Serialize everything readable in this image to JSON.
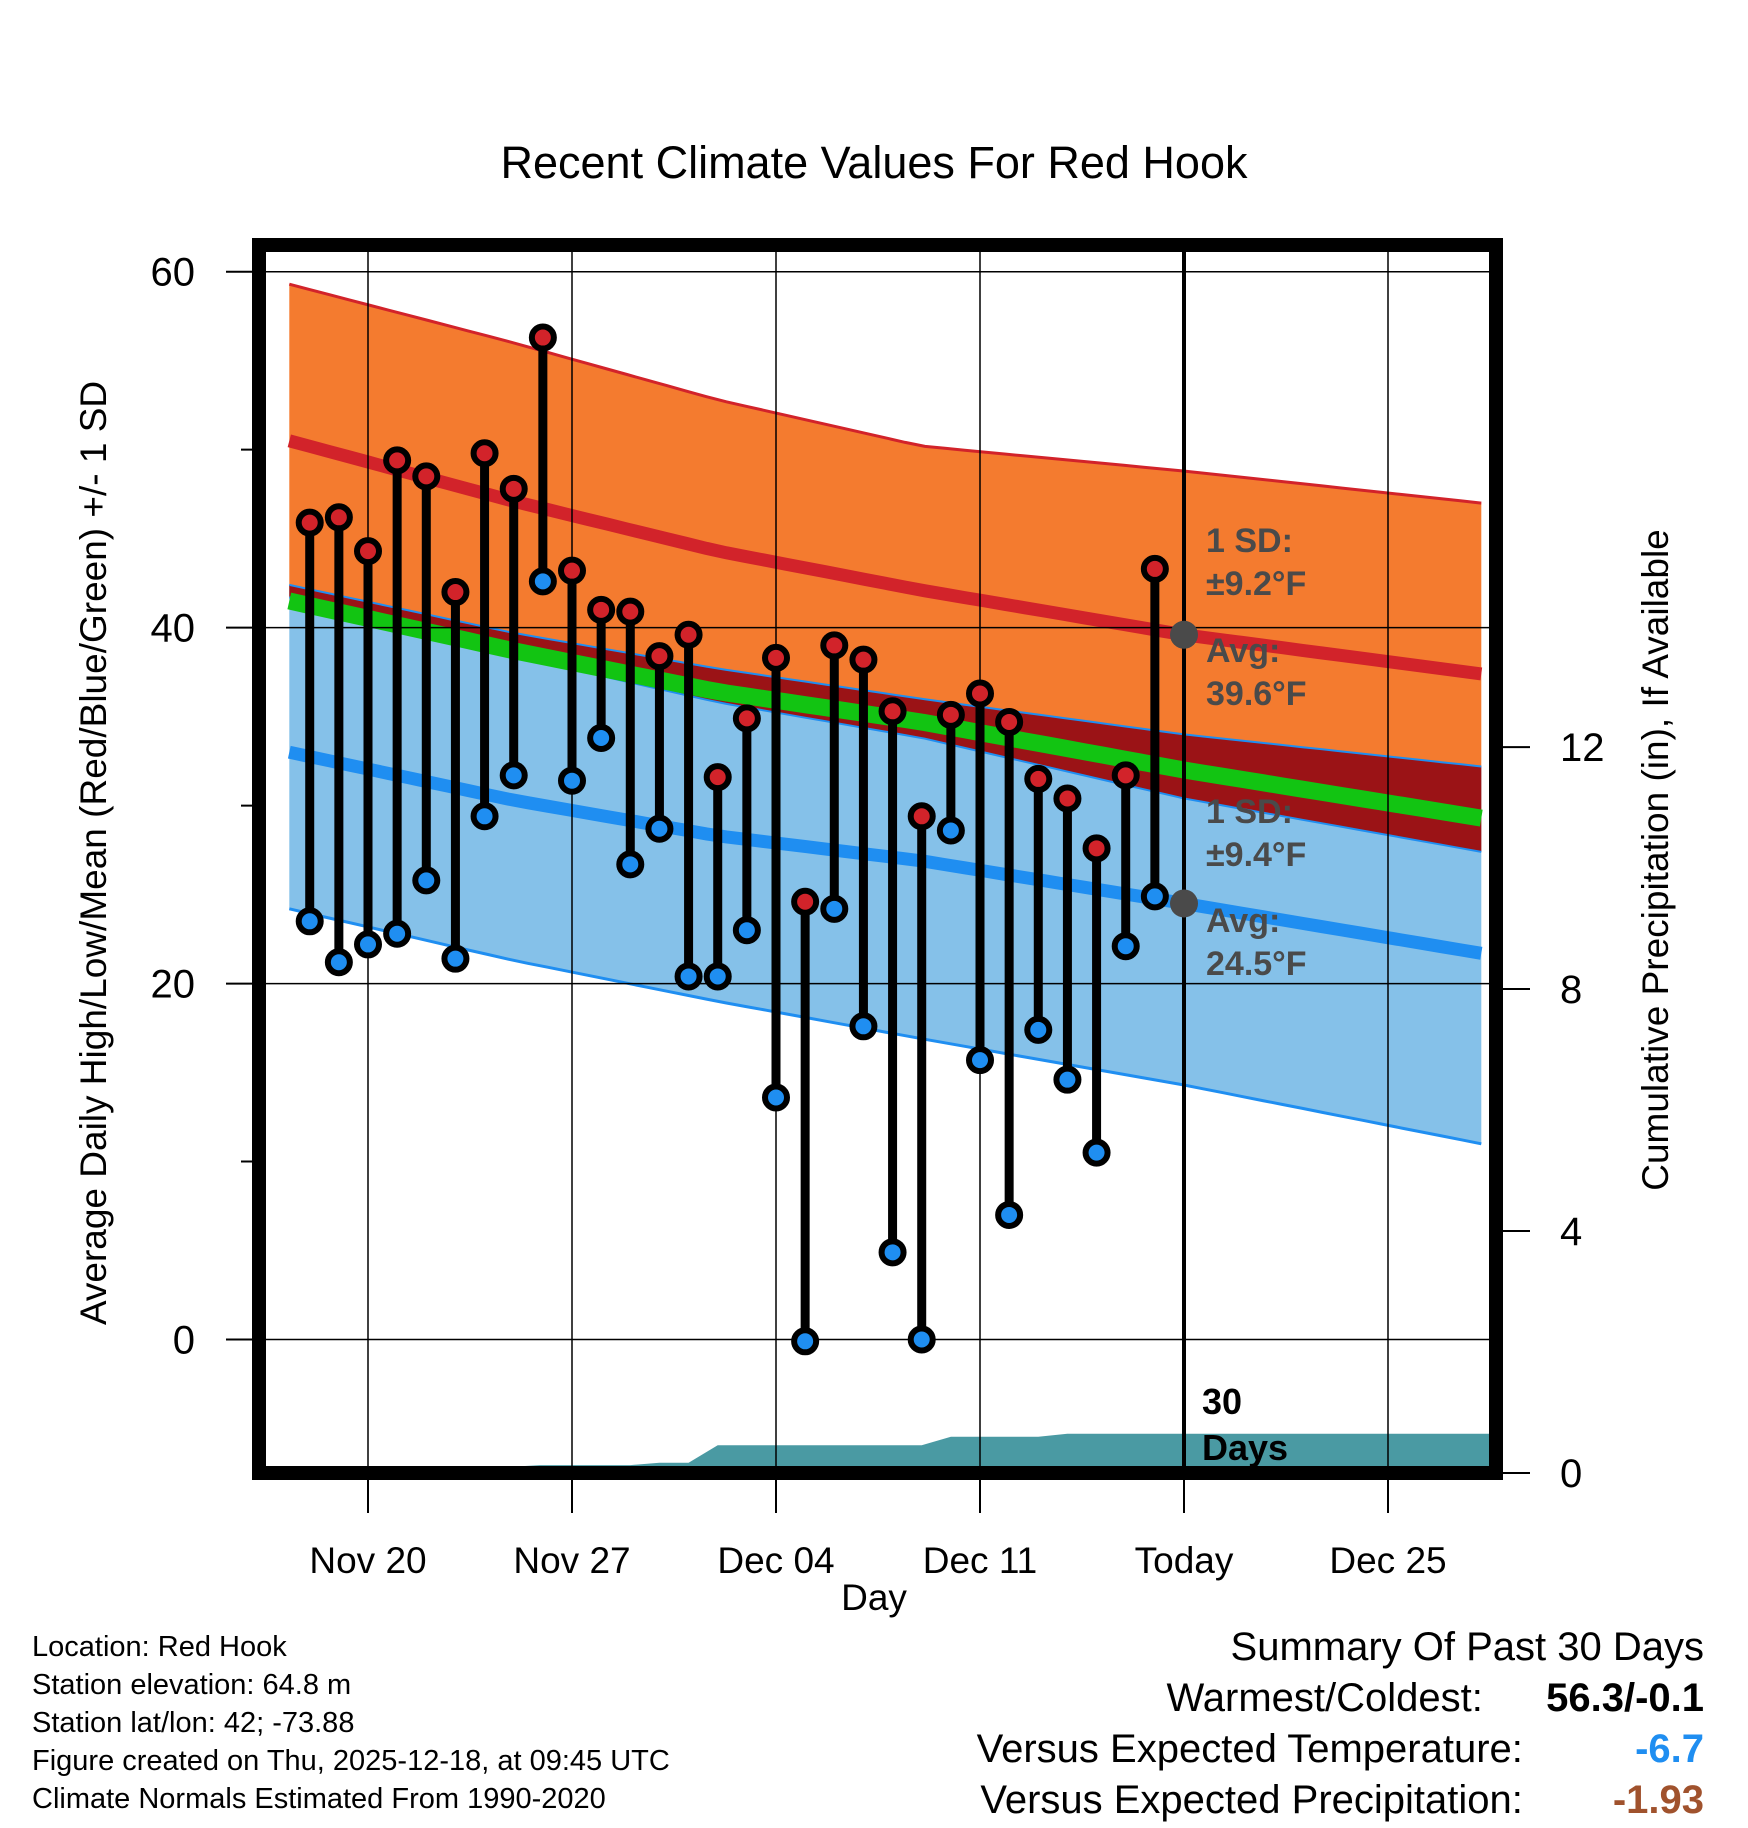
{
  "chart_data": {
    "type": "line",
    "title": "Recent Climate Values For Red Hook",
    "xlabel": "Day",
    "ylabel": "Average Daily High/Low/Mean (Red/Blue/Green) +/- 1 SD",
    "y2label": "Cumulative Precipitation (in), If Available",
    "xlim": [
      -3.5,
      38.5
    ],
    "ylim": [
      -7.5,
      61.5
    ],
    "y_ticks": [
      0,
      20,
      40,
      60
    ],
    "y2lim": [
      0,
      20.3
    ],
    "y2_ticks": [
      0,
      4,
      8,
      12
    ],
    "x_ticks": [
      {
        "day": 0,
        "label": "Nov 20"
      },
      {
        "day": 7,
        "label": "Nov 27"
      },
      {
        "day": 14,
        "label": "Dec 04"
      },
      {
        "day": 21,
        "label": "Dec 11"
      },
      {
        "day": 28,
        "label": "Today"
      },
      {
        "day": 35,
        "label": "Dec 25"
      }
    ],
    "today_day": 28,
    "normals": {
      "days": [
        -2.7,
        5,
        12,
        19,
        28,
        38.2
      ],
      "high_mean": [
        50.5,
        47.1,
        44.3,
        42.1,
        39.6,
        37.4
      ],
      "high_upper": [
        59.3,
        56.0,
        52.8,
        50.2,
        48.8,
        47.0
      ],
      "high_lower": [
        41.7,
        38.4,
        35.8,
        33.8,
        30.4,
        27.4
      ],
      "low_mean": [
        33.0,
        30.3,
        28.3,
        26.9,
        24.5,
        21.7
      ],
      "low_upper": [
        42.4,
        39.7,
        37.7,
        36.0,
        34.0,
        32.2
      ],
      "low_lower": [
        24.2,
        21.3,
        19.0,
        16.9,
        14.3,
        11.0
      ],
      "mean": [
        41.5,
        38.7,
        36.4,
        34.7,
        32.0,
        29.3
      ]
    },
    "series": [
      {
        "name": "Daily High",
        "days": [
          -2,
          -1,
          0,
          1,
          2,
          3,
          4,
          5,
          6,
          7,
          8,
          9,
          10,
          11,
          12,
          13,
          14,
          15,
          16,
          17,
          18,
          19,
          20,
          21,
          22,
          23,
          24,
          25,
          26,
          27
        ],
        "values": [
          45.9,
          46.2,
          44.3,
          49.4,
          48.5,
          42.0,
          49.8,
          47.8,
          56.3,
          43.2,
          41.0,
          40.9,
          38.4,
          39.6,
          31.6,
          34.9,
          38.3,
          24.6,
          39.0,
          38.2,
          35.3,
          29.4,
          35.1,
          36.3,
          34.7,
          31.5,
          30.4,
          27.6,
          31.7,
          43.3
        ]
      },
      {
        "name": "Daily Low",
        "days": [
          -2,
          -1,
          0,
          1,
          2,
          3,
          4,
          5,
          6,
          7,
          8,
          9,
          10,
          11,
          12,
          13,
          14,
          15,
          16,
          17,
          18,
          19,
          20,
          21,
          22,
          23,
          24,
          25,
          26,
          27
        ],
        "values": [
          23.5,
          21.2,
          22.2,
          22.8,
          25.8,
          21.4,
          29.4,
          31.7,
          42.6,
          31.4,
          33.8,
          26.7,
          28.7,
          20.4,
          20.4,
          23.0,
          13.6,
          -0.1,
          24.2,
          17.6,
          4.9,
          0.0,
          28.6,
          15.7,
          7.0,
          17.4,
          14.6,
          10.5,
          22.1,
          24.9
        ]
      }
    ],
    "precipitation": {
      "days": [
        -3,
        3.9,
        4.8,
        5.9,
        7,
        8,
        9,
        10,
        11,
        12,
        13,
        14,
        15,
        16,
        17,
        18,
        19,
        20,
        21,
        22,
        23,
        24,
        25,
        26,
        27,
        28,
        38.5
      ],
      "values": [
        0,
        0,
        0.1,
        0.13,
        0.13,
        0.13,
        0.13,
        0.17,
        0.17,
        0.46,
        0.46,
        0.46,
        0.46,
        0.46,
        0.46,
        0.46,
        0.46,
        0.6,
        0.6,
        0.6,
        0.6,
        0.65,
        0.65,
        0.65,
        0.65,
        0.65,
        0.65
      ]
    },
    "annotations": {
      "high_sd_label": "1 SD:",
      "high_sd_value": "±9.2°F",
      "high_avg_label": "Avg:",
      "high_avg_value": "39.6°F",
      "low_sd_label": "1 SD:",
      "low_sd_value": "±9.4°F",
      "low_avg_label": "Avg:",
      "low_avg_value": "24.5°F",
      "period_line1": "30",
      "period_line2": "Days"
    },
    "colors": {
      "high_band": "#f47b2f",
      "high_line": "#d2232a",
      "low_band": "#85c1e9",
      "low_line": "#1f8ef1",
      "mean_line": "#12c412",
      "overlap": "#9b1316",
      "precip": "#4a9aa3",
      "high_dot": "#d2232a",
      "low_dot": "#1f8ef1"
    }
  },
  "info": {
    "location": "Location: Red Hook",
    "elevation": "Station elevation: 64.8 m",
    "latlon": "Station lat/lon: 42; -73.88",
    "created": "Figure created on Thu, 2025-12-18, at 09:45 UTC",
    "normals": "Climate Normals Estimated From 1990-2020"
  },
  "summary": {
    "title": "Summary Of Past 30 Days",
    "warm_cold_label": "Warmest/Coldest:",
    "warm_cold_value": "56.3/-0.1",
    "temp_label": "Versus Expected Temperature:",
    "temp_value": "-6.7",
    "temp_color": "#1f8ef1",
    "precip_label": "Versus Expected Precipitation:",
    "precip_value": "-1.93",
    "precip_color": "#a0522d"
  }
}
